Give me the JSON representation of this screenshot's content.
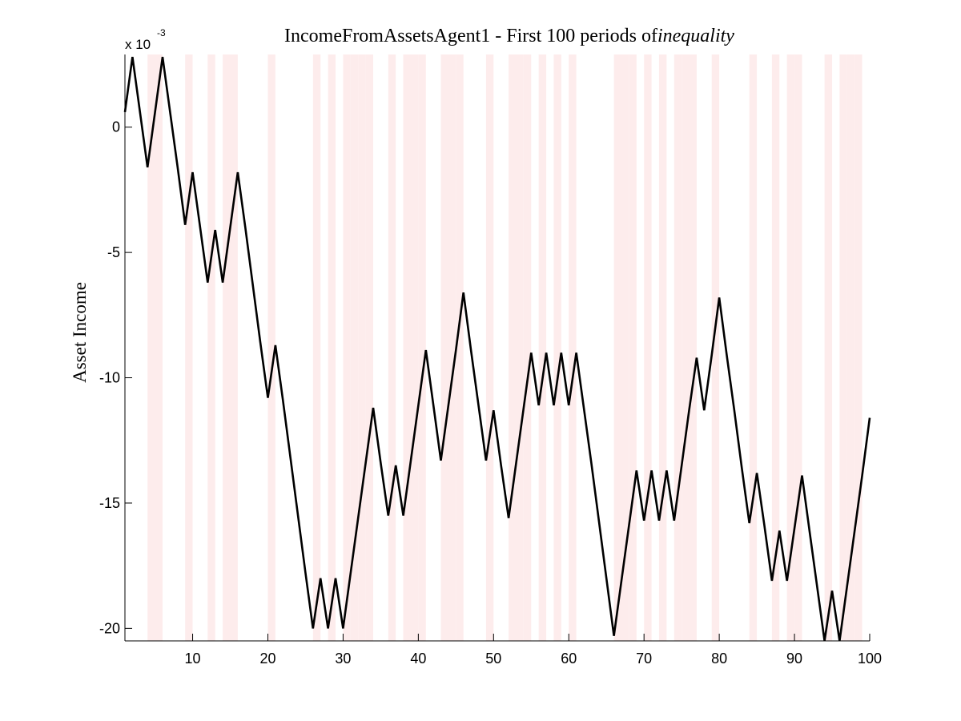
{
  "chart_data": {
    "type": "line",
    "title": "IncomeFromAssetsAgent1 - First 100 periods of",
    "title_italic": "inequality",
    "xlabel": "",
    "ylabel": "Asset Income",
    "y_multiplier_base": "x 10",
    "y_multiplier_exp": "-3",
    "xlim": [
      1,
      100
    ],
    "ylim": [
      -20.5,
      2.9
    ],
    "xticks": [
      10,
      20,
      30,
      40,
      50,
      60,
      70,
      80,
      90,
      100
    ],
    "yticks": [
      0,
      -5,
      -10,
      -15,
      -20
    ],
    "grid": false,
    "line_color": "#000000",
    "band_color": "#fdecec",
    "shaded_periods": [
      4,
      5,
      9,
      12,
      14,
      15,
      20,
      26,
      28,
      30,
      31,
      32,
      33,
      36,
      38,
      39,
      40,
      43,
      44,
      45,
      49,
      52,
      53,
      54,
      56,
      58,
      60,
      66,
      67,
      68,
      70,
      72,
      74,
      75,
      76,
      79,
      84,
      87,
      89,
      90,
      94,
      96,
      97,
      98
    ],
    "series": [
      {
        "x": [
          1,
          2,
          3,
          4,
          5,
          6,
          7,
          8,
          9,
          10,
          11,
          12,
          13,
          14,
          15,
          16,
          17,
          18,
          19,
          20,
          21,
          22,
          23,
          24,
          25,
          26,
          27,
          28,
          29,
          30,
          31,
          32,
          33,
          34,
          35,
          36,
          37,
          38,
          39,
          40,
          41,
          42,
          43,
          44,
          45,
          46,
          47,
          48,
          49,
          50,
          51,
          52,
          53,
          54,
          55,
          56,
          57,
          58,
          59,
          60,
          61,
          62,
          63,
          64,
          65,
          66,
          67,
          68,
          69,
          70,
          71,
          72,
          73,
          74,
          75,
          76,
          77,
          78,
          79,
          80,
          81,
          82,
          83,
          84,
          85,
          86,
          87,
          88,
          89,
          90,
          91,
          92,
          93,
          94,
          95,
          96,
          97,
          98,
          99,
          100
        ],
        "values": [
          0.6,
          2.8,
          0.6,
          -1.6,
          0.6,
          2.8,
          0.6,
          -1.6,
          -3.9,
          -1.8,
          -4.0,
          -6.2,
          -4.1,
          -6.2,
          -4.0,
          -1.8,
          -4.0,
          -6.3,
          -8.6,
          -10.8,
          -8.7,
          -10.9,
          -13.2,
          -15.5,
          -17.8,
          -20.0,
          -18.0,
          -20.0,
          -18.0,
          -20.0,
          -17.8,
          -15.6,
          -13.4,
          -11.2,
          -13.4,
          -15.5,
          -13.5,
          -15.5,
          -13.3,
          -11.1,
          -8.9,
          -11.1,
          -13.3,
          -11.1,
          -8.9,
          -6.6,
          -8.9,
          -11.1,
          -13.3,
          -11.3,
          -13.5,
          -15.6,
          -13.4,
          -11.2,
          -9.0,
          -11.1,
          -9.0,
          -11.1,
          -9.0,
          -11.1,
          -9.0,
          -11.2,
          -13.4,
          -15.7,
          -18.0,
          -20.3,
          -18.1,
          -15.9,
          -13.7,
          -15.7,
          -13.7,
          -15.7,
          -13.7,
          -15.7,
          -13.5,
          -11.3,
          -9.2,
          -11.3,
          -9.1,
          -6.8,
          -9.1,
          -11.3,
          -13.6,
          -15.8,
          -13.8,
          -15.9,
          -18.1,
          -16.1,
          -18.1,
          -16.0,
          -13.9,
          -16.1,
          -18.3,
          -20.5,
          -18.5,
          -20.5,
          -18.3,
          -16.1,
          -13.9,
          -11.6
        ]
      }
    ]
  }
}
